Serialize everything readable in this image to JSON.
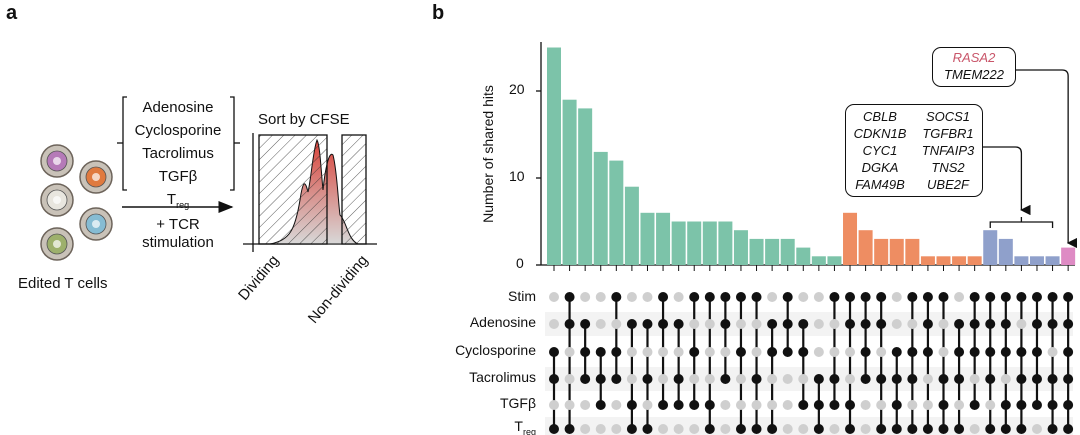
{
  "panels": {
    "a": "a",
    "b": "b"
  },
  "panel_a": {
    "cells_label": "Edited T cells",
    "conditions": [
      "Adenosine",
      "Cyclosporine",
      "Tacrolimus",
      "TGFβ"
    ],
    "treg_main": "T",
    "treg_sub": "reg",
    "arrow_label_1": "+ TCR",
    "arrow_label_2": "stimulation",
    "sort_title": "Sort by CFSE",
    "gate_dividing": "Dividing",
    "gate_nondividing": "Non-dividing",
    "cell_colors": [
      "#b57ab8",
      "#e07a3f",
      "#e8e6df",
      "#86bcd3",
      "#9db06c"
    ]
  },
  "chart_data": {
    "type": "upset",
    "ylabel": "Number of shared hits",
    "ylim": [
      0,
      25
    ],
    "yticks": [
      "0",
      "10",
      "20"
    ],
    "sets": [
      "Stim",
      "Adenosine",
      "Cyclosporine",
      "Tacrolimus",
      "TGFβ",
      "T"
    ],
    "treg_sub": "reg",
    "degree_colors": {
      "3": "#7cc3a9",
      "4": "#ee8d62",
      "5": "#8fa0cb",
      "6": "#de8bc4"
    },
    "values": [
      25,
      19,
      18,
      13,
      12,
      9,
      6,
      6,
      5,
      5,
      5,
      5,
      4,
      3,
      3,
      3,
      2,
      1,
      1,
      6,
      4,
      3,
      3,
      3,
      1,
      1,
      1,
      1,
      4,
      3,
      1,
      1,
      1,
      2
    ],
    "membership": [
      [
        0,
        0,
        1,
        1,
        0,
        1
      ],
      [
        1,
        1,
        0,
        0,
        0,
        1
      ],
      [
        0,
        1,
        1,
        1,
        0,
        0
      ],
      [
        0,
        0,
        1,
        1,
        1,
        0
      ],
      [
        1,
        0,
        1,
        1,
        0,
        0
      ],
      [
        0,
        1,
        0,
        0,
        1,
        1
      ],
      [
        0,
        1,
        0,
        1,
        0,
        1
      ],
      [
        1,
        1,
        0,
        0,
        1,
        0
      ],
      [
        0,
        1,
        0,
        1,
        1,
        0
      ],
      [
        1,
        0,
        1,
        0,
        1,
        0
      ],
      [
        1,
        0,
        0,
        0,
        1,
        1
      ],
      [
        1,
        1,
        0,
        1,
        0,
        0
      ],
      [
        1,
        0,
        1,
        0,
        0,
        1
      ],
      [
        1,
        0,
        0,
        1,
        0,
        1
      ],
      [
        0,
        1,
        1,
        0,
        0,
        1
      ],
      [
        1,
        1,
        1,
        0,
        0,
        0
      ],
      [
        0,
        1,
        1,
        0,
        1,
        0
      ],
      [
        0,
        0,
        0,
        1,
        1,
        1
      ],
      [
        1,
        0,
        0,
        1,
        1,
        0
      ],
      [
        1,
        1,
        0,
        0,
        1,
        1
      ],
      [
        1,
        1,
        1,
        1,
        0,
        0
      ],
      [
        1,
        1,
        0,
        1,
        0,
        1
      ],
      [
        0,
        0,
        1,
        1,
        1,
        1
      ],
      [
        1,
        0,
        1,
        1,
        0,
        1
      ],
      [
        1,
        1,
        1,
        0,
        0,
        1
      ],
      [
        1,
        0,
        0,
        1,
        1,
        1
      ],
      [
        0,
        1,
        1,
        1,
        0,
        1
      ],
      [
        1,
        1,
        1,
        0,
        1,
        0
      ],
      [
        1,
        1,
        1,
        1,
        0,
        1
      ],
      [
        1,
        1,
        1,
        0,
        1,
        1
      ],
      [
        1,
        0,
        1,
        1,
        1,
        1
      ],
      [
        1,
        1,
        1,
        1,
        1,
        0
      ],
      [
        1,
        1,
        0,
        1,
        1,
        1
      ],
      [
        1,
        1,
        1,
        1,
        1,
        1
      ]
    ],
    "annotations": {
      "five_way_genes": [
        [
          "CBLB",
          "SOCS1"
        ],
        [
          "CDKN1B",
          "TGFBR1"
        ],
        [
          "CYC1",
          "TNFAIP3"
        ],
        [
          "DGKA",
          "TNS2"
        ],
        [
          "FAM49B",
          "UBE2F"
        ]
      ],
      "six_way_genes": [
        "RASA2",
        "TMEM222"
      ],
      "highlight_color": "#c9566a"
    }
  }
}
